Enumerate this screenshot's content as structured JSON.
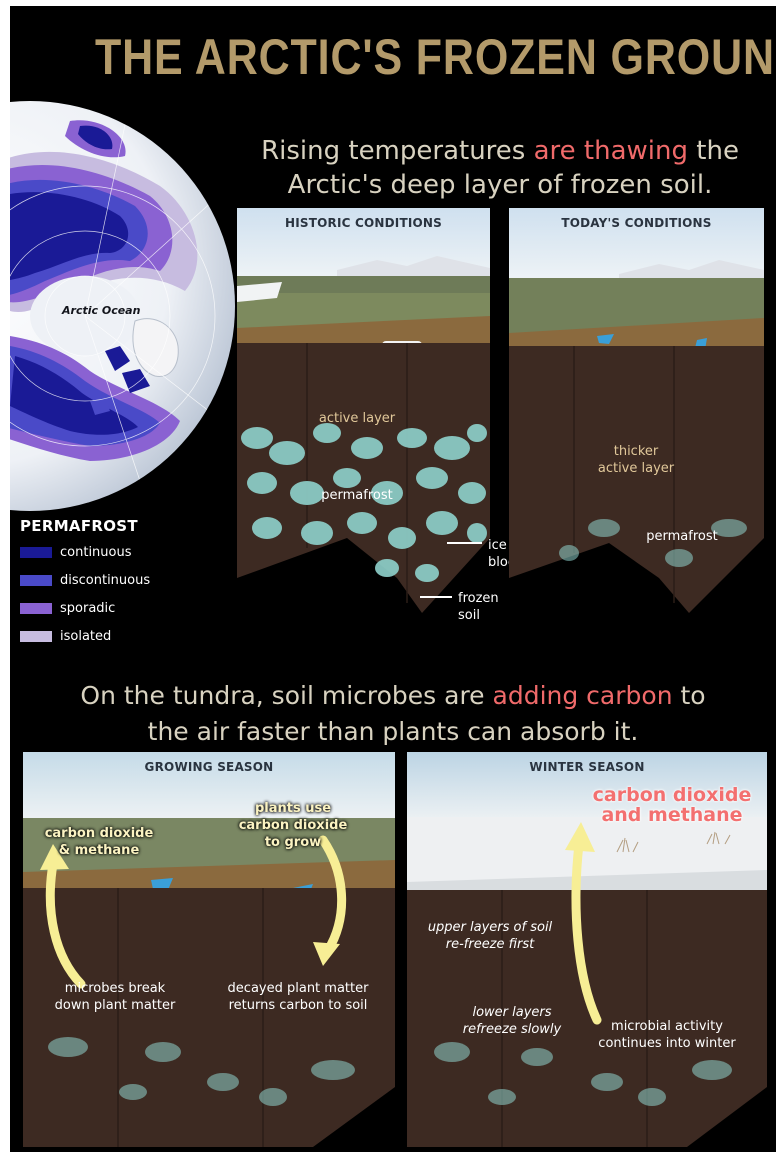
{
  "title": "THE ARCTIC'S FROZEN GROUND",
  "section1": {
    "line1_a": "Rising temperatures ",
    "line1_hl": "are thawing",
    "line1_b": " the",
    "line2": "Arctic's deep layer of frozen soil."
  },
  "map": {
    "ocean_label": "Arctic Ocean",
    "legend_title": "PERMAFROST",
    "legend": [
      {
        "label": "continuous",
        "color": "#1a1a96"
      },
      {
        "label": "discontinuous",
        "color": "#4a4ac8"
      },
      {
        "label": "sporadic",
        "color": "#8a62d2"
      },
      {
        "label": "isolated",
        "color": "#c7bce0"
      }
    ]
  },
  "historic": {
    "title": "HISTORIC CONDITIONS",
    "active_layer": "active layer",
    "permafrost": "permafrost",
    "ice_block": "ice\nblock",
    "frozen_soil": "frozen\nsoil"
  },
  "today": {
    "title": "TODAY'S CONDITIONS",
    "thicker_1": "thicker",
    "thicker_2": "active layer",
    "permafrost": "permafrost"
  },
  "section2": {
    "line1_a": "On the tundra, soil microbes are ",
    "line1_hl": "adding carbon",
    "line1_b": " to",
    "line2": "the air faster than plants can absorb it."
  },
  "growing": {
    "title": "GROWING SEASON",
    "co2_1": "carbon dioxide",
    "co2_2": "& methane",
    "plants_1": "plants use",
    "plants_2": "carbon dioxide",
    "plants_3": "to grow",
    "microbes_1": "microbes break",
    "microbes_2": "down plant matter",
    "decayed_1": "decayed plant matter",
    "decayed_2": "returns carbon to soil"
  },
  "winter": {
    "title": "WINTER SEASON",
    "co2_1": "carbon dioxide",
    "co2_2": "and methane",
    "upper_1": "upper layers of soil",
    "upper_2": "re-freeze first",
    "lower_1": "lower layers",
    "lower_2": "refreeze slowly",
    "microbial_1": "microbial activity",
    "microbial_2": "continues into winter"
  },
  "colors": {
    "title": "#b39a6a",
    "highlight": "#f06a6a",
    "soil": "#3d2a22",
    "ice": "#8fd2cc",
    "arrow": "#f7ee95"
  }
}
